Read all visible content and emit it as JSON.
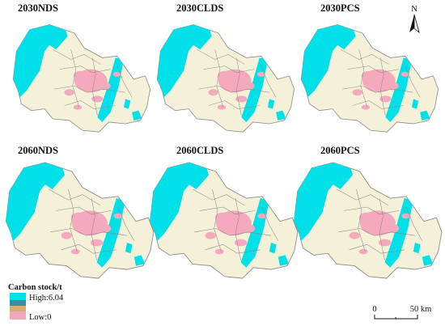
{
  "panels": [
    {
      "title": "2030NDS"
    },
    {
      "title": "2030CLDS"
    },
    {
      "title": "2030PCS"
    },
    {
      "title": "2060NDS"
    },
    {
      "title": "2060CLDS"
    },
    {
      "title": "2060PCS"
    }
  ],
  "legend": {
    "title": "Carbon stock/t",
    "high_label": "High:6.04",
    "low_label": "Low:0",
    "colors": [
      "#00e0e8",
      "#3b8aa8",
      "#d2b07a",
      "#f2a6b8"
    ]
  },
  "north_arrow": {
    "label": "N"
  },
  "scale_bar": {
    "zero_label": "0",
    "end_label": "50 km"
  },
  "colors": {
    "high_forest": "#00e0e8",
    "base_land": "#f5f1d8",
    "urban": "#f4a9bc",
    "boundary": "#8a8a8a"
  }
}
